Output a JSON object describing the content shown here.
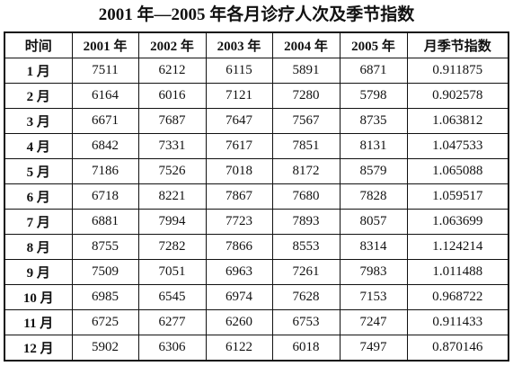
{
  "header": {
    "title": "2001 年—2005 年各月诊疗人次及季节指数"
  },
  "table": {
    "columns": [
      "时间",
      "2001 年",
      "2002 年",
      "2003 年",
      "2004 年",
      "2005 年",
      "月季节指数"
    ],
    "rows": [
      [
        "1 月",
        "7511",
        "6212",
        "6115",
        "5891",
        "6871",
        "0.911875"
      ],
      [
        "2 月",
        "6164",
        "6016",
        "7121",
        "7280",
        "5798",
        "0.902578"
      ],
      [
        "3 月",
        "6671",
        "7687",
        "7647",
        "7567",
        "8735",
        "1.063812"
      ],
      [
        "4 月",
        "6842",
        "7331",
        "7617",
        "7851",
        "8131",
        "1.047533"
      ],
      [
        "5 月",
        "7186",
        "7526",
        "7018",
        "8172",
        "8579",
        "1.065088"
      ],
      [
        "6 月",
        "6718",
        "8221",
        "7867",
        "7680",
        "7828",
        "1.059517"
      ],
      [
        "7 月",
        "6881",
        "7994",
        "7723",
        "7893",
        "8057",
        "1.063699"
      ],
      [
        "8 月",
        "8755",
        "7282",
        "7866",
        "8553",
        "8314",
        "1.124214"
      ],
      [
        "9 月",
        "7509",
        "7051",
        "6963",
        "7261",
        "7983",
        "1.011488"
      ],
      [
        "10 月",
        "6985",
        "6545",
        "6974",
        "7628",
        "7153",
        "0.968722"
      ],
      [
        "11 月",
        "6725",
        "6277",
        "6260",
        "6753",
        "7247",
        "0.911433"
      ],
      [
        "12 月",
        "5902",
        "6306",
        "6122",
        "6018",
        "7497",
        "0.870146"
      ]
    ]
  }
}
